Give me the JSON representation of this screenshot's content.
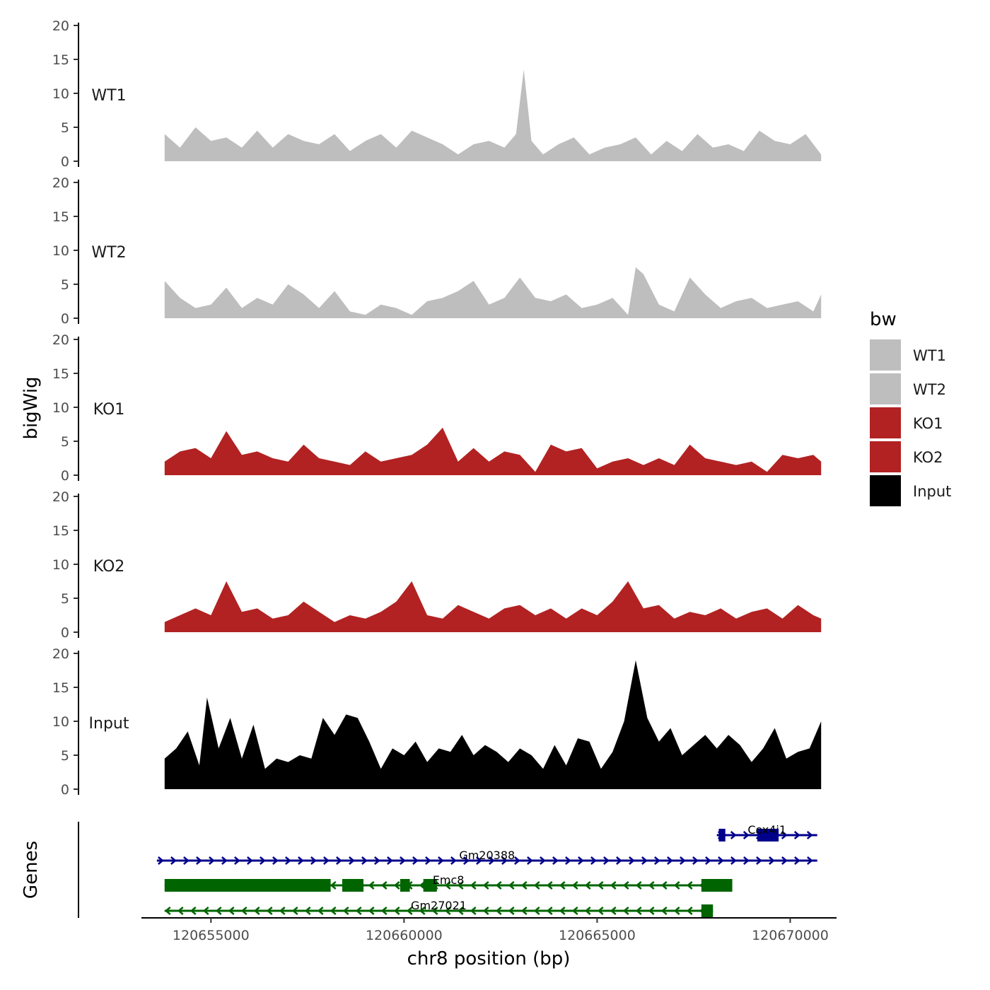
{
  "chart_data": {
    "type": "area",
    "title": "",
    "xlabel": "chr8 position (bp)",
    "ylabel": "bigWig",
    "genes_label": "Genes",
    "xlim": [
      120653200,
      120671200
    ],
    "x_ticks": [
      120655000,
      120660000,
      120665000,
      120670000
    ],
    "x_tick_labels": [
      "120655000",
      "120660000",
      "120665000",
      "120670000"
    ],
    "ylim": [
      0,
      20
    ],
    "y_ticks": [
      0,
      5,
      10,
      15,
      20
    ],
    "y_tick_labels": [
      "0",
      "5",
      "10",
      "15",
      "20"
    ],
    "legend": {
      "title": "bw",
      "position": "right",
      "entries": [
        {
          "label": "WT1",
          "color": "#bebebe"
        },
        {
          "label": "WT2",
          "color": "#bebebe"
        },
        {
          "label": "KO1",
          "color": "#b22222"
        },
        {
          "label": "KO2",
          "color": "#b22222"
        },
        {
          "label": "Input",
          "color": "#000000"
        }
      ]
    },
    "series": [
      {
        "name": "WT1",
        "color": "#bebebe",
        "x": [
          120653800,
          120654200,
          120654600,
          120655000,
          120655400,
          120655800,
          120656200,
          120656600,
          120657000,
          120657400,
          120657800,
          120658200,
          120658600,
          120659000,
          120659400,
          120659800,
          120660200,
          120660600,
          120661000,
          120661400,
          120661800,
          120662200,
          120662600,
          120662900,
          120663100,
          120663300,
          120663600,
          120664000,
          120664400,
          120664800,
          120665200,
          120665600,
          120666000,
          120666400,
          120666800,
          120667200,
          120667600,
          120668000,
          120668400,
          120668800,
          120669200,
          120669600,
          120670000,
          120670400,
          120670800
        ],
        "values": [
          4,
          2,
          5,
          3,
          3.5,
          2,
          4.5,
          2,
          4,
          3,
          2.5,
          4,
          1.5,
          3,
          4,
          2,
          4.5,
          3.5,
          2.5,
          1,
          2.5,
          3,
          2,
          4,
          13.5,
          3,
          1,
          2.5,
          3.5,
          1,
          2,
          2.5,
          3.5,
          1,
          3,
          1.5,
          4,
          2,
          2.5,
          1.5,
          4.5,
          3,
          2.5,
          4,
          1
        ]
      },
      {
        "name": "WT2",
        "color": "#bebebe",
        "x": [
          120653800,
          120654200,
          120654600,
          120655000,
          120655400,
          120655800,
          120656200,
          120656600,
          120657000,
          120657400,
          120657800,
          120658200,
          120658600,
          120659000,
          120659400,
          120659800,
          120660200,
          120660600,
          120661000,
          120661400,
          120661800,
          120662200,
          120662600,
          120663000,
          120663400,
          120663800,
          120664200,
          120664600,
          120665000,
          120665400,
          120665800,
          120666000,
          120666200,
          120666600,
          120667000,
          120667400,
          120667800,
          120668200,
          120668600,
          120669000,
          120669400,
          120669800,
          120670200,
          120670600,
          120670800
        ],
        "values": [
          5.5,
          3,
          1.5,
          2,
          4.5,
          1.5,
          3,
          2,
          5,
          3.5,
          1.5,
          4,
          1,
          0.5,
          2,
          1.5,
          0.5,
          2.5,
          3,
          4,
          5.5,
          2,
          3,
          6,
          3,
          2.5,
          3.5,
          1.5,
          2,
          3,
          0.5,
          7.5,
          6.5,
          2,
          1,
          6,
          3.5,
          1.5,
          2.5,
          3,
          1.5,
          2,
          2.5,
          1,
          3.5
        ]
      },
      {
        "name": "KO1",
        "color": "#b22222",
        "x": [
          120653800,
          120654200,
          120654600,
          120655000,
          120655400,
          120655800,
          120656200,
          120656600,
          120657000,
          120657400,
          120657800,
          120658200,
          120658600,
          120659000,
          120659400,
          120659800,
          120660200,
          120660600,
          120661000,
          120661400,
          120661800,
          120662200,
          120662600,
          120663000,
          120663400,
          120663800,
          120664200,
          120664600,
          120665000,
          120665400,
          120665800,
          120666200,
          120666600,
          120667000,
          120667400,
          120667800,
          120668200,
          120668600,
          120669000,
          120669400,
          120669800,
          120670200,
          120670600,
          120670800
        ],
        "values": [
          2,
          3.5,
          4,
          2.5,
          6.5,
          3,
          3.5,
          2.5,
          2,
          4.5,
          2.5,
          2,
          1.5,
          3.5,
          2,
          2.5,
          3,
          4.5,
          7,
          2,
          4,
          2,
          3.5,
          3,
          0.5,
          4.5,
          3.5,
          4,
          1,
          2,
          2.5,
          1.5,
          2.5,
          1.5,
          4.5,
          2.5,
          2,
          1.5,
          2,
          0.5,
          3,
          2.5,
          3,
          2
        ]
      },
      {
        "name": "KO2",
        "color": "#b22222",
        "x": [
          120653800,
          120654200,
          120654600,
          120655000,
          120655400,
          120655800,
          120656200,
          120656600,
          120657000,
          120657400,
          120657800,
          120658200,
          120658600,
          120659000,
          120659400,
          120659800,
          120660200,
          120660600,
          120661000,
          120661400,
          120661800,
          120662200,
          120662600,
          120663000,
          120663400,
          120663800,
          120664200,
          120664600,
          120665000,
          120665400,
          120665800,
          120666200,
          120666600,
          120667000,
          120667400,
          120667800,
          120668200,
          120668600,
          120669000,
          120669400,
          120669800,
          120670200,
          120670600,
          120670800
        ],
        "values": [
          1.5,
          2.5,
          3.5,
          2.5,
          7.5,
          3,
          3.5,
          2,
          2.5,
          4.5,
          3,
          1.5,
          2.5,
          2,
          3,
          4.5,
          7.5,
          2.5,
          2,
          4,
          3,
          2,
          3.5,
          4,
          2.5,
          3.5,
          2,
          3.5,
          2.5,
          4.5,
          7.5,
          3.5,
          4,
          2,
          3,
          2.5,
          3.5,
          2,
          3,
          3.5,
          2,
          4,
          2.5,
          2
        ]
      },
      {
        "name": "Input",
        "color": "#000000",
        "x": [
          120653800,
          120654100,
          120654400,
          120654700,
          120654900,
          120655200,
          120655500,
          120655800,
          120656100,
          120656400,
          120656700,
          120657000,
          120657300,
          120657600,
          120657900,
          120658200,
          120658500,
          120658800,
          120659100,
          120659400,
          120659700,
          120660000,
          120660300,
          120660600,
          120660900,
          120661200,
          120661500,
          120661800,
          120662100,
          120662400,
          120662700,
          120663000,
          120663300,
          120663600,
          120663900,
          120664200,
          120664500,
          120664800,
          120665100,
          120665400,
          120665700,
          120666000,
          120666300,
          120666600,
          120666900,
          120667200,
          120667500,
          120667800,
          120668100,
          120668400,
          120668700,
          120669000,
          120669300,
          120669600,
          120669900,
          120670200,
          120670500,
          120670800
        ],
        "values": [
          4.5,
          6,
          8.5,
          3.5,
          13.5,
          6,
          10.5,
          4.5,
          9.5,
          3,
          4.5,
          4,
          5,
          4.5,
          10.5,
          8,
          11,
          10.5,
          7,
          3,
          6,
          5,
          7,
          4,
          6,
          5.5,
          8,
          5,
          6.5,
          5.5,
          4,
          6,
          5,
          3,
          6.5,
          3.5,
          7.5,
          7,
          3,
          5.5,
          10,
          19,
          10.5,
          7,
          9,
          5,
          6.5,
          8,
          6,
          8,
          6.5,
          4,
          6,
          9,
          4.5,
          5.5,
          6,
          10
        ]
      }
    ],
    "genes": [
      {
        "name": "Cox4i1",
        "strand": "+",
        "color": "#00008b",
        "start": 120668100,
        "end": 120670700,
        "exons": [
          [
            120668150,
            120668320
          ],
          [
            120669150,
            120669700
          ]
        ]
      },
      {
        "name": "Gm20388",
        "strand": "+",
        "color": "#00008b",
        "start": 120653600,
        "end": 120670700,
        "exons": []
      },
      {
        "name": "Emc8",
        "strand": "-",
        "color": "#006400",
        "start": 120653800,
        "end": 120668500,
        "exons": [
          [
            120653800,
            120658100
          ],
          [
            120658400,
            120658950
          ],
          [
            120659900,
            120660150
          ],
          [
            120660500,
            120660850
          ],
          [
            120667700,
            120668500
          ]
        ]
      },
      {
        "name": "Gm27021",
        "strand": "-",
        "color": "#006400",
        "start": 120653800,
        "end": 120668000,
        "exons": [
          [
            120667700,
            120668000
          ]
        ]
      }
    ]
  }
}
